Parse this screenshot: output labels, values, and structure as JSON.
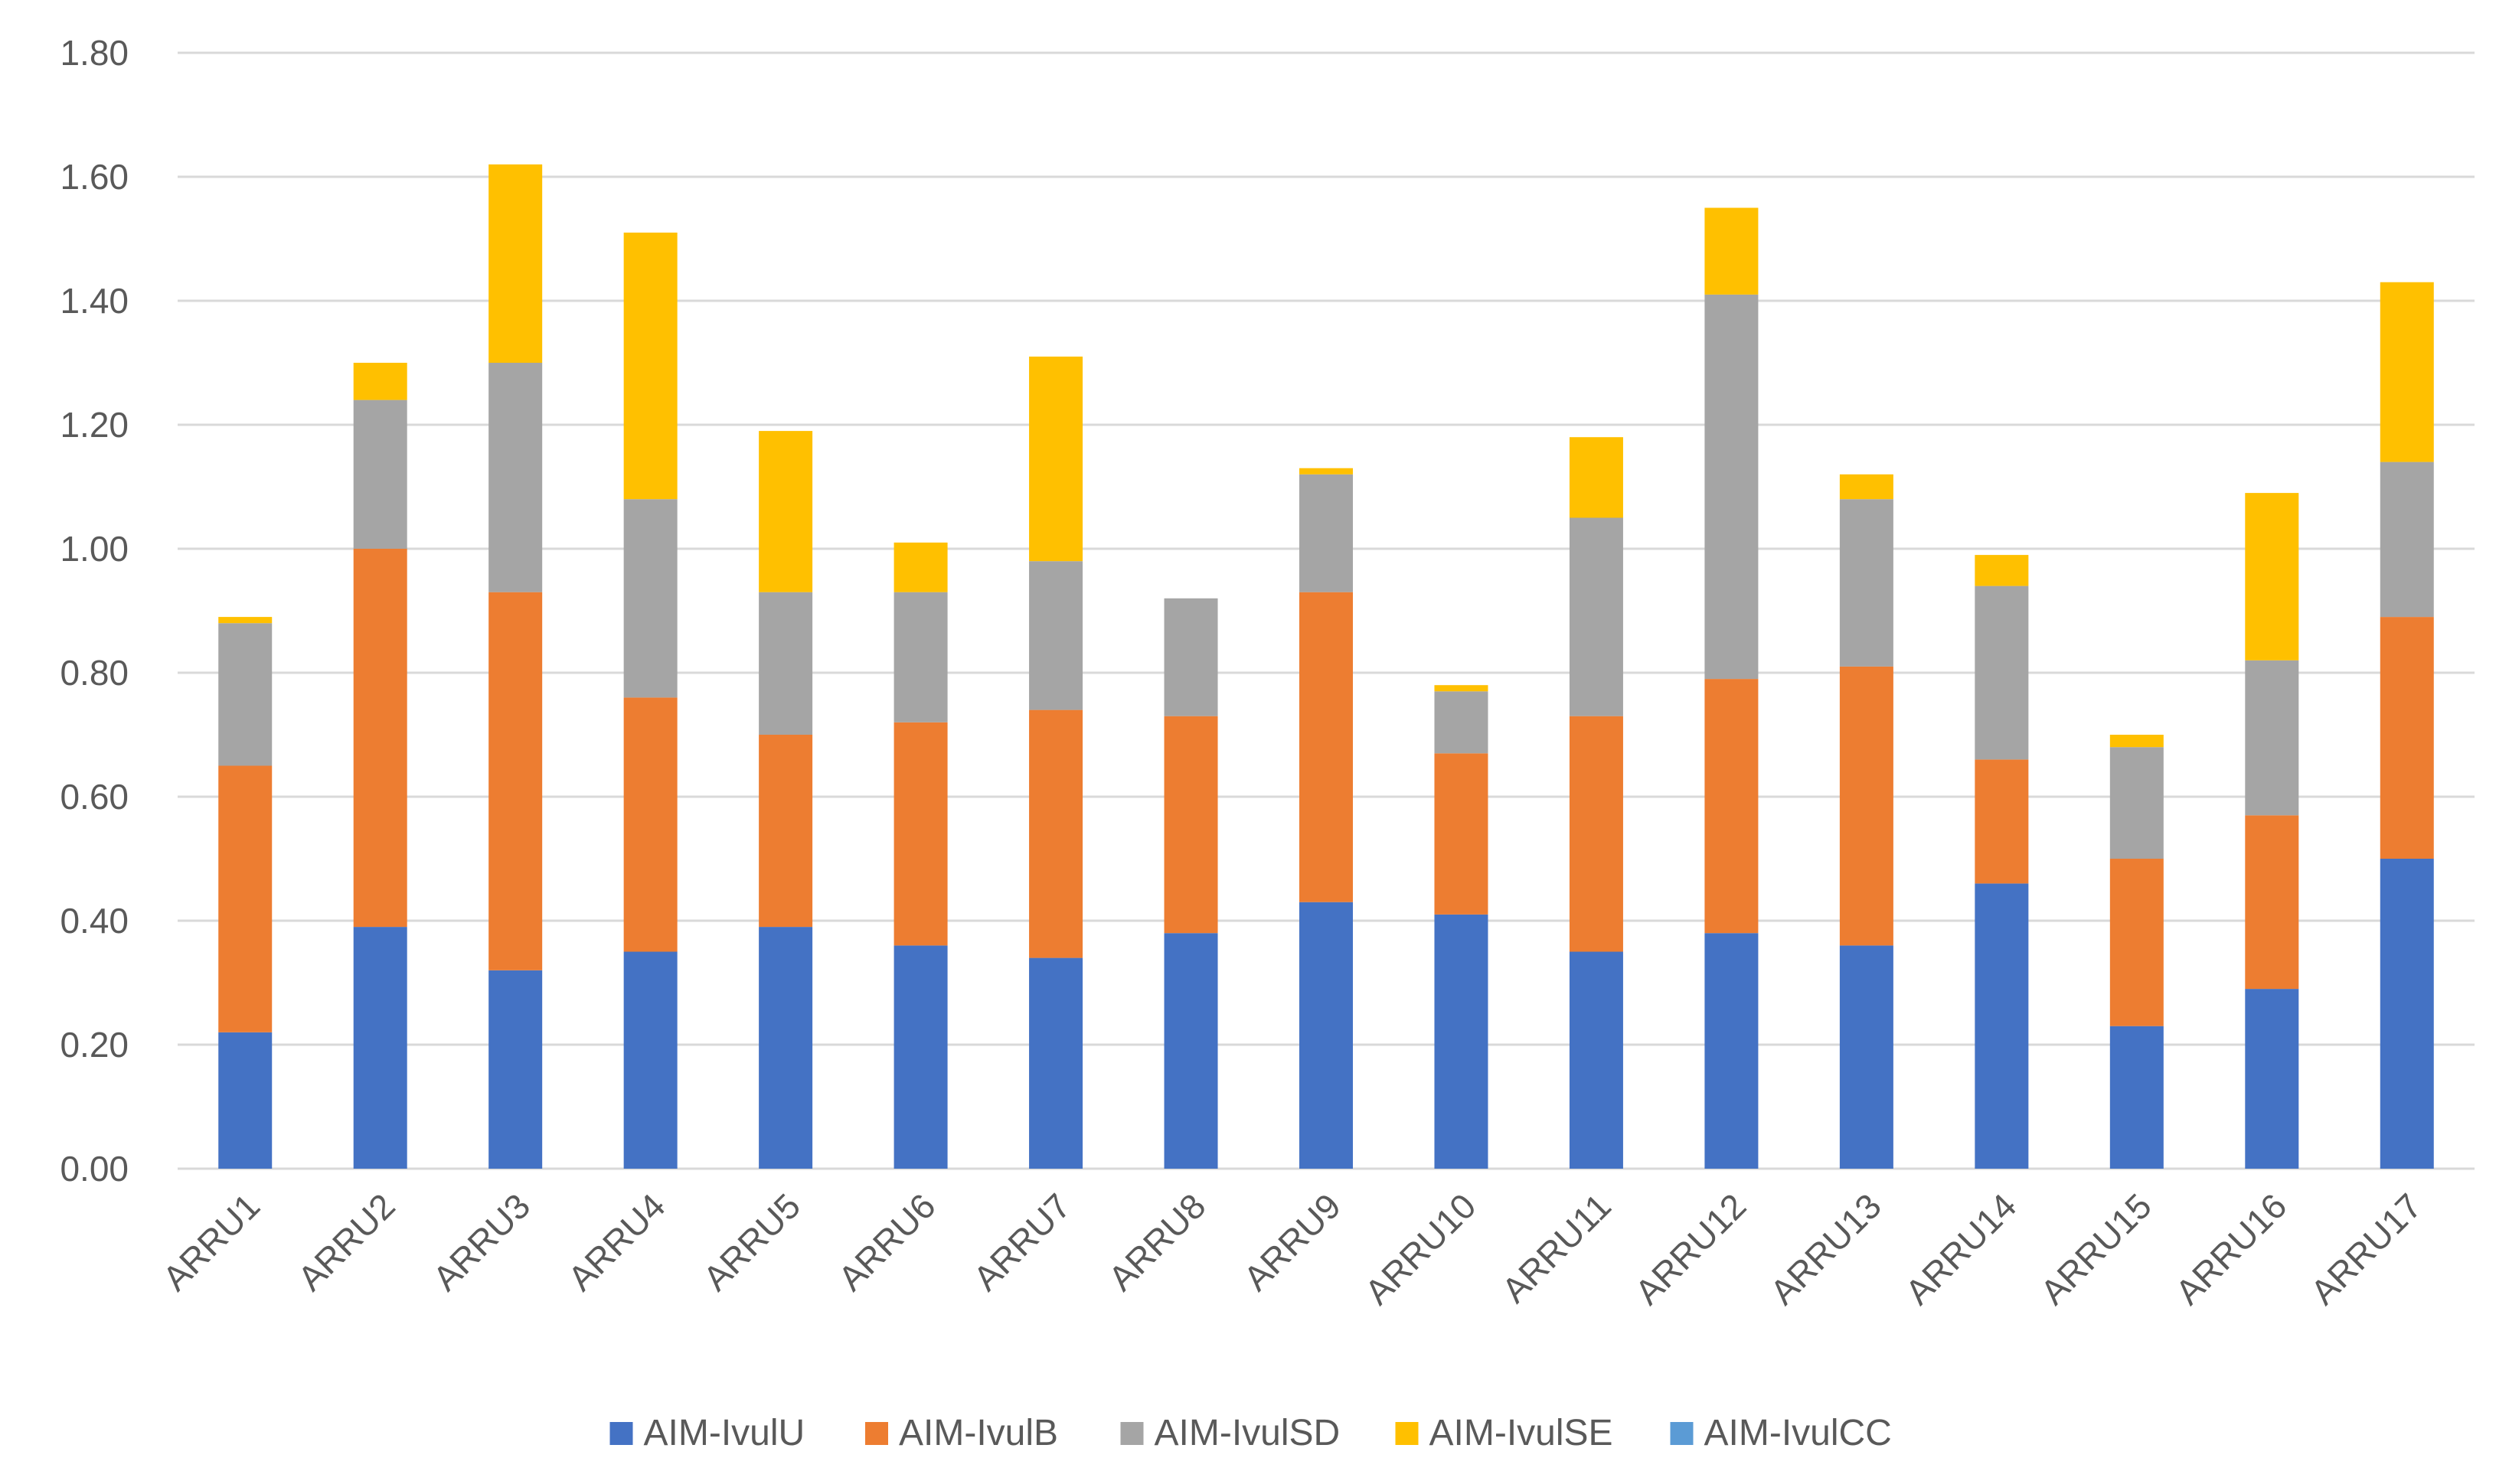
{
  "chart_data": {
    "type": "bar",
    "stacked": true,
    "title": "",
    "xlabel": "",
    "ylabel": "",
    "ylim": [
      0,
      1.8
    ],
    "y_ticks": [
      "0.00",
      "0.20",
      "0.40",
      "0.60",
      "0.80",
      "1.00",
      "1.20",
      "1.40",
      "1.60",
      "1.80"
    ],
    "grid": true,
    "legend_position": "bottom",
    "categories": [
      "ARRU1",
      "ARRU2",
      "ARRU3",
      "ARRU4",
      "ARRU5",
      "ARRU6",
      "ARRU7",
      "ARRU8",
      "ARRU9",
      "ARRU10",
      "ARRU11",
      "ARRU12",
      "ARRU13",
      "ARRU14",
      "ARRU15",
      "ARRU16",
      "ARRU17"
    ],
    "series": [
      {
        "name": "AIM-IvulU",
        "color": "#4472c4",
        "values": [
          0.22,
          0.39,
          0.32,
          0.35,
          0.39,
          0.36,
          0.34,
          0.38,
          0.43,
          0.41,
          0.35,
          0.38,
          0.36,
          0.46,
          0.23,
          0.29,
          0.5
        ]
      },
      {
        "name": "AIM-IvulB",
        "color": "#ed7d31",
        "values": [
          0.43,
          0.61,
          0.61,
          0.41,
          0.31,
          0.36,
          0.4,
          0.35,
          0.5,
          0.26,
          0.38,
          0.41,
          0.45,
          0.2,
          0.27,
          0.28,
          0.39
        ]
      },
      {
        "name": "AIM-IvulSD",
        "color": "#a5a5a5",
        "values": [
          0.23,
          0.24,
          0.37,
          0.32,
          0.23,
          0.21,
          0.24,
          0.19,
          0.19,
          0.1,
          0.32,
          0.62,
          0.27,
          0.28,
          0.18,
          0.25,
          0.25
        ]
      },
      {
        "name": "AIM-IvulSE",
        "color": "#ffc000",
        "values": [
          0.01,
          0.06,
          0.32,
          0.43,
          0.26,
          0.08,
          0.33,
          0.0,
          0.01,
          0.01,
          0.13,
          0.14,
          0.04,
          0.05,
          0.02,
          0.27,
          0.29
        ]
      },
      {
        "name": "AIM-IvulCC",
        "color": "#5b9bd5",
        "values": [
          0,
          0,
          0,
          0,
          0,
          0,
          0,
          0,
          0,
          0,
          0,
          0,
          0,
          0,
          0,
          0,
          0
        ]
      }
    ]
  }
}
